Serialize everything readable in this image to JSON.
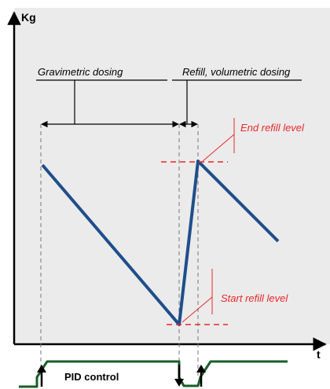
{
  "diagram": {
    "y_axis_label": "Kg",
    "x_axis_label": "t",
    "phase_gravimetric": "Gravimetric dosing",
    "phase_refill": "Refill, volumetric dosing",
    "end_refill_label": "End refill level",
    "start_refill_label": "Start refill level",
    "pid_label": "PID control",
    "colors": {
      "background": "#ebebeb",
      "weight_line": "#1f4e8c",
      "level_marker": "#e8282b",
      "pid_signal": "#1a5e2a",
      "guide": "#777777"
    }
  }
}
